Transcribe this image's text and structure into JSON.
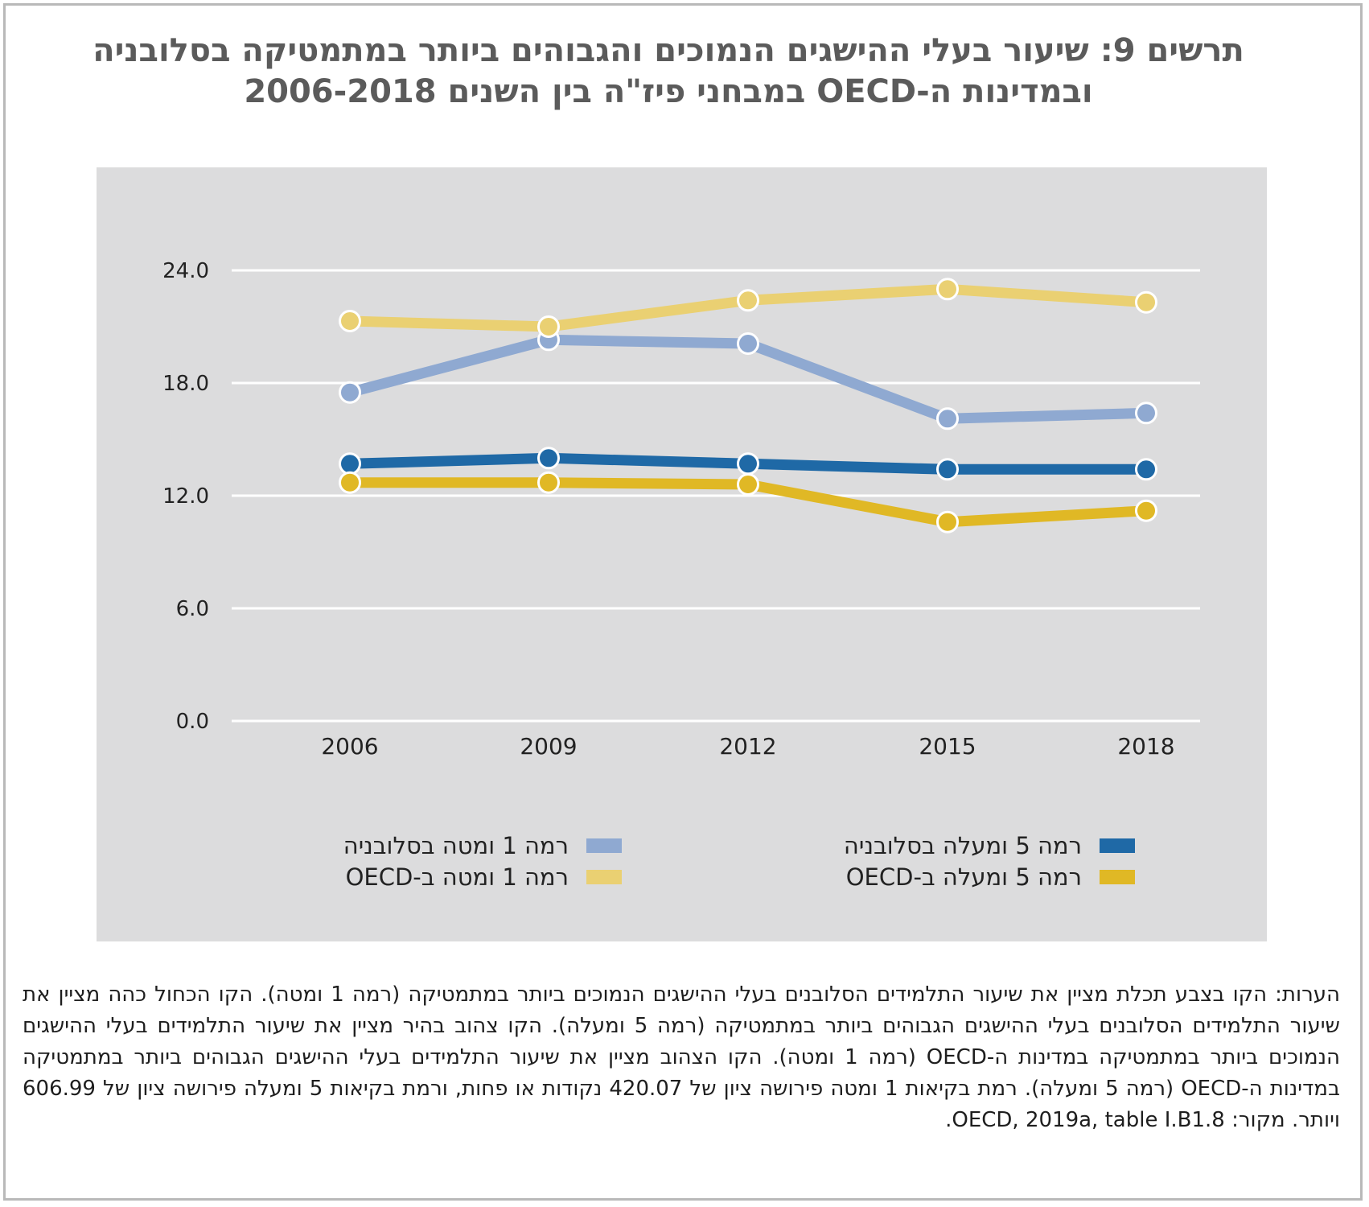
{
  "title": {
    "line1": "תרשים 9: שיעור בעלי ההישגים הנמוכים והגבוהים ביותר במתמטיקה בסלובניה",
    "line2": "ובמדינות ה-OECD במבחני פיז\"ה בין השנים 2006-2018"
  },
  "chart_data": {
    "type": "line",
    "x": [
      "2006",
      "2009",
      "2012",
      "2015",
      "2018"
    ],
    "ylim": [
      0,
      24
    ],
    "yticks": [
      "0.0",
      "6.0",
      "12.0",
      "18.0",
      "24.0"
    ],
    "grid": true,
    "legend_position": "bottom",
    "series": [
      {
        "name": "רמה 1 ומטה בסלובניה",
        "color": "#8fa9d1",
        "values": [
          17.5,
          20.3,
          20.1,
          16.1,
          16.4
        ]
      },
      {
        "name": "רמה 1 ומטה ב-OECD",
        "color": "#ead072",
        "values": [
          21.3,
          21.0,
          22.4,
          23.0,
          22.3
        ]
      },
      {
        "name": "רמה 5 ומעלה בסלובניה",
        "color": "#1f69a6",
        "values": [
          13.7,
          14.0,
          13.7,
          13.4,
          13.4
        ]
      },
      {
        "name": "רמה 5 ומעלה ב-OECD",
        "color": "#e0b825",
        "values": [
          12.7,
          12.7,
          12.6,
          10.6,
          11.2
        ]
      }
    ]
  },
  "notes": {
    "text": "הערות: הקו בצבע תכלת מציין את שיעור התלמידים הסלובנים בעלי ההישגים הנמוכים ביותר במתמטיקה (רמה 1 ומטה). הקו הכחול כהה מציין את שיעור התלמידים הסלובנים בעלי ההישגים הגבוהים ביותר במתמטיקה (רמה 5 ומעלה). הקו צהוב בהיר מציין את שיעור התלמידים בעלי ההישגים הנמוכים ביותר במתמטיקה במדינות ה-OECD (רמה 1 ומטה). הקו הצהוב מציין את שיעור התלמידים בעלי ההישגים הגבוהים ביותר במתמטיקה במדינות ה-OECD (רמה 5 ומעלה). רמת בקיאות 1 ומטה פירושה ציון של 420.07 נקודות או פחות, ורמת בקיאות 5 ומעלה פירושה ציון של 606.99 ויותר. מקור: OECD, 2019a, table I.B1.8."
  }
}
